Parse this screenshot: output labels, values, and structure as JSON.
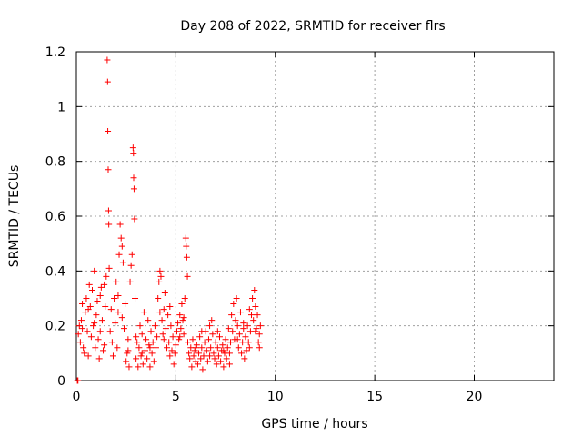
{
  "chart_data": {
    "type": "scatter",
    "title": "Day 208 of 2022, SRMTID for receiver flrs",
    "xlabel": "GPS time / hours",
    "ylabel": "SRMTID / TECUs",
    "xlim": [
      0,
      24
    ],
    "ylim": [
      0,
      1.2
    ],
    "xticks": [
      0,
      5,
      10,
      15,
      20
    ],
    "xtick_labels": [
      "0",
      "5",
      "10",
      "15",
      "20"
    ],
    "yticks": [
      0,
      0.2,
      0.4,
      0.6,
      0.8,
      1.0,
      1.2
    ],
    "ytick_labels": [
      "0",
      "0.2",
      "0.4",
      "0.6",
      "0.8",
      "1",
      "1.2"
    ],
    "grid": true,
    "marker": "plus",
    "color": "#ff0000",
    "series": [
      {
        "name": "SRMTID",
        "points": [
          [
            0.05,
            0.0
          ],
          [
            0.08,
            0.0
          ],
          [
            0.1,
            0.17
          ],
          [
            0.15,
            0.2
          ],
          [
            0.2,
            0.14
          ],
          [
            0.25,
            0.22
          ],
          [
            0.3,
            0.28
          ],
          [
            0.35,
            0.12
          ],
          [
            0.4,
            0.1
          ],
          [
            0.45,
            0.25
          ],
          [
            0.5,
            0.3
          ],
          [
            0.55,
            0.18
          ],
          [
            0.6,
            0.09
          ],
          [
            0.65,
            0.35
          ],
          [
            0.7,
            0.27
          ],
          [
            0.75,
            0.16
          ],
          [
            0.8,
            0.33
          ],
          [
            0.85,
            0.2
          ],
          [
            0.9,
            0.4
          ],
          [
            0.95,
            0.12
          ],
          [
            1.0,
            0.24
          ],
          [
            1.05,
            0.29
          ],
          [
            1.1,
            0.15
          ],
          [
            1.15,
            0.08
          ],
          [
            1.2,
            0.31
          ],
          [
            1.25,
            0.34
          ],
          [
            1.3,
            0.22
          ],
          [
            1.35,
            0.11
          ],
          [
            1.4,
            0.35
          ],
          [
            1.45,
            0.27
          ],
          [
            1.5,
            0.38
          ],
          [
            1.55,
            1.17
          ],
          [
            1.57,
            1.09
          ],
          [
            1.58,
            0.91
          ],
          [
            1.6,
            0.77
          ],
          [
            1.62,
            0.62
          ],
          [
            1.63,
            0.57
          ],
          [
            1.65,
            0.41
          ],
          [
            1.7,
            0.18
          ],
          [
            1.75,
            0.26
          ],
          [
            1.8,
            0.14
          ],
          [
            1.85,
            0.09
          ],
          [
            1.9,
            0.3
          ],
          [
            1.95,
            0.21
          ],
          [
            2.0,
            0.36
          ],
          [
            2.05,
            0.12
          ],
          [
            2.1,
            0.25
          ],
          [
            2.15,
            0.46
          ],
          [
            2.2,
            0.57
          ],
          [
            2.25,
            0.52
          ],
          [
            2.3,
            0.49
          ],
          [
            2.35,
            0.43
          ],
          [
            2.4,
            0.19
          ],
          [
            2.45,
            0.28
          ],
          [
            2.5,
            0.07
          ],
          [
            2.55,
            0.1
          ],
          [
            2.6,
            0.15
          ],
          [
            2.65,
            0.05
          ],
          [
            2.7,
            0.36
          ],
          [
            2.75,
            0.42
          ],
          [
            2.8,
            0.46
          ],
          [
            2.85,
            0.85
          ],
          [
            2.87,
            0.83
          ],
          [
            2.88,
            0.74
          ],
          [
            2.9,
            0.7
          ],
          [
            2.92,
            0.59
          ],
          [
            2.95,
            0.3
          ],
          [
            3.0,
            0.08
          ],
          [
            3.05,
            0.14
          ],
          [
            3.1,
            0.05
          ],
          [
            3.15,
            0.12
          ],
          [
            3.2,
            0.2
          ],
          [
            3.25,
            0.09
          ],
          [
            3.3,
            0.17
          ],
          [
            3.35,
            0.06
          ],
          [
            3.4,
            0.25
          ],
          [
            3.45,
            0.11
          ],
          [
            3.5,
            0.15
          ],
          [
            3.55,
            0.08
          ],
          [
            3.6,
            0.22
          ],
          [
            3.65,
            0.13
          ],
          [
            3.7,
            0.05
          ],
          [
            3.75,
            0.18
          ],
          [
            3.8,
            0.1
          ],
          [
            3.85,
            0.14
          ],
          [
            3.9,
            0.07
          ],
          [
            3.95,
            0.2
          ],
          [
            4.0,
            0.12
          ],
          [
            4.05,
            0.16
          ],
          [
            4.1,
            0.3
          ],
          [
            4.15,
            0.36
          ],
          [
            4.2,
            0.4
          ],
          [
            4.25,
            0.38
          ],
          [
            4.3,
            0.22
          ],
          [
            4.35,
            0.17
          ],
          [
            4.4,
            0.26
          ],
          [
            4.45,
            0.32
          ],
          [
            4.5,
            0.19
          ],
          [
            4.55,
            0.12
          ],
          [
            4.6,
            0.24
          ],
          [
            4.65,
            0.14
          ],
          [
            4.7,
            0.09
          ],
          [
            4.75,
            0.2
          ],
          [
            4.8,
            0.11
          ],
          [
            4.85,
            0.16
          ],
          [
            4.9,
            0.06
          ],
          [
            4.95,
            0.1
          ],
          [
            5.0,
            0.13
          ],
          [
            5.05,
            0.18
          ],
          [
            5.1,
            0.21
          ],
          [
            5.15,
            0.15
          ],
          [
            5.2,
            0.24
          ],
          [
            5.25,
            0.19
          ],
          [
            5.3,
            0.28
          ],
          [
            5.35,
            0.22
          ],
          [
            5.4,
            0.17
          ],
          [
            5.45,
            0.3
          ],
          [
            5.5,
            0.52
          ],
          [
            5.52,
            0.49
          ],
          [
            5.55,
            0.45
          ],
          [
            5.58,
            0.38
          ],
          [
            5.6,
            0.14
          ],
          [
            5.65,
            0.1
          ],
          [
            5.7,
            0.08
          ],
          [
            5.75,
            0.12
          ],
          [
            5.8,
            0.05
          ],
          [
            5.85,
            0.15
          ],
          [
            5.9,
            0.09
          ],
          [
            5.95,
            0.11
          ],
          [
            6.0,
            0.07
          ],
          [
            6.05,
            0.13
          ],
          [
            6.1,
            0.06
          ],
          [
            6.15,
            0.1
          ],
          [
            6.2,
            0.16
          ],
          [
            6.25,
            0.08
          ],
          [
            6.3,
            0.12
          ],
          [
            6.35,
            0.04
          ],
          [
            6.4,
            0.09
          ],
          [
            6.45,
            0.14
          ],
          [
            6.5,
            0.18
          ],
          [
            6.55,
            0.11
          ],
          [
            6.6,
            0.07
          ],
          [
            6.65,
            0.15
          ],
          [
            6.7,
            0.2
          ],
          [
            6.75,
            0.12
          ],
          [
            6.8,
            0.22
          ],
          [
            6.85,
            0.17
          ],
          [
            6.9,
            0.1
          ],
          [
            6.95,
            0.08
          ],
          [
            7.0,
            0.14
          ],
          [
            7.05,
            0.06
          ],
          [
            7.1,
            0.12
          ],
          [
            7.15,
            0.09
          ],
          [
            7.2,
            0.16
          ],
          [
            7.25,
            0.07
          ],
          [
            7.3,
            0.11
          ],
          [
            7.35,
            0.13
          ],
          [
            7.4,
            0.05
          ],
          [
            7.45,
            0.1
          ],
          [
            7.5,
            0.15
          ],
          [
            7.55,
            0.08
          ],
          [
            7.6,
            0.12
          ],
          [
            7.65,
            0.19
          ],
          [
            7.7,
            0.1
          ],
          [
            7.75,
            0.14
          ],
          [
            7.8,
            0.24
          ],
          [
            7.85,
            0.18
          ],
          [
            7.9,
            0.28
          ],
          [
            7.95,
            0.15
          ],
          [
            8.0,
            0.22
          ],
          [
            8.05,
            0.3
          ],
          [
            8.1,
            0.2
          ],
          [
            8.15,
            0.12
          ],
          [
            8.2,
            0.17
          ],
          [
            8.25,
            0.25
          ],
          [
            8.3,
            0.1
          ],
          [
            8.35,
            0.14
          ],
          [
            8.4,
            0.21
          ],
          [
            8.45,
            0.08
          ],
          [
            8.5,
            0.16
          ],
          [
            8.55,
            0.11
          ],
          [
            8.6,
            0.2
          ],
          [
            8.65,
            0.14
          ],
          [
            8.7,
            0.26
          ],
          [
            8.75,
            0.18
          ],
          [
            8.8,
            0.24
          ],
          [
            8.85,
            0.3
          ],
          [
            8.9,
            0.22
          ],
          [
            8.95,
            0.33
          ],
          [
            9.0,
            0.27
          ],
          [
            9.05,
            0.19
          ],
          [
            9.1,
            0.24
          ],
          [
            9.15,
            0.14
          ],
          [
            9.2,
            0.17
          ],
          [
            9.25,
            0.2
          ],
          [
            0.3,
            0.19
          ],
          [
            0.6,
            0.26
          ],
          [
            0.9,
            0.21
          ],
          [
            1.2,
            0.18
          ],
          [
            1.4,
            0.13
          ],
          [
            2.1,
            0.31
          ],
          [
            2.3,
            0.23
          ],
          [
            2.6,
            0.11
          ],
          [
            3.0,
            0.16
          ],
          [
            3.3,
            0.1
          ],
          [
            3.7,
            0.12
          ],
          [
            4.2,
            0.25
          ],
          [
            4.4,
            0.15
          ],
          [
            4.7,
            0.27
          ],
          [
            5.2,
            0.16
          ],
          [
            5.4,
            0.23
          ],
          [
            6.0,
            0.12
          ],
          [
            6.3,
            0.18
          ],
          [
            6.7,
            0.09
          ],
          [
            7.1,
            0.18
          ],
          [
            7.4,
            0.11
          ],
          [
            7.7,
            0.06
          ],
          [
            8.1,
            0.15
          ],
          [
            8.4,
            0.19
          ],
          [
            8.7,
            0.12
          ],
          [
            9.0,
            0.18
          ],
          [
            9.2,
            0.12
          ]
        ]
      }
    ]
  }
}
